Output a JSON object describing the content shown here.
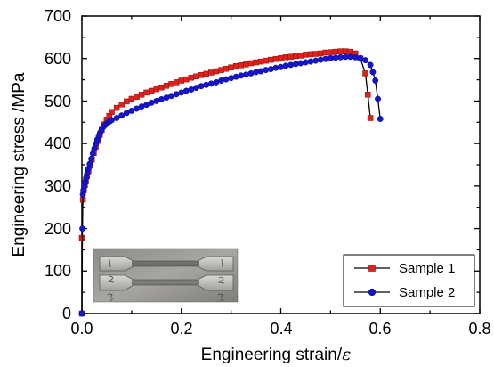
{
  "chart_data": {
    "type": "line",
    "xlabel": "Engineering strain/",
    "xlabel_symbol": "ε",
    "ylabel": "Engineering stress /MPa",
    "xlim": [
      0,
      0.8
    ],
    "ylim": [
      0,
      700
    ],
    "xticks": [
      "0.0",
      "0.2",
      "0.4",
      "0.6",
      "0.8"
    ],
    "yticks": [
      "0",
      "100",
      "200",
      "300",
      "400",
      "500",
      "600",
      "700"
    ],
    "grid": false,
    "legend_position": "bottom-right",
    "inset": "photo of two dog-bone tensile specimens",
    "series": [
      {
        "name": "Sample 1",
        "color": "#e0201a",
        "marker": "square",
        "x": [
          0.0,
          0.0,
          0.002,
          0.004,
          0.006,
          0.008,
          0.01,
          0.013,
          0.016,
          0.02,
          0.024,
          0.028,
          0.032,
          0.036,
          0.04,
          0.045,
          0.05,
          0.055,
          0.06,
          0.07,
          0.08,
          0.09,
          0.1,
          0.11,
          0.12,
          0.13,
          0.14,
          0.15,
          0.16,
          0.17,
          0.18,
          0.19,
          0.2,
          0.21,
          0.22,
          0.23,
          0.24,
          0.25,
          0.26,
          0.27,
          0.28,
          0.29,
          0.3,
          0.31,
          0.32,
          0.33,
          0.34,
          0.35,
          0.36,
          0.37,
          0.38,
          0.39,
          0.4,
          0.41,
          0.42,
          0.43,
          0.44,
          0.45,
          0.46,
          0.47,
          0.48,
          0.49,
          0.5,
          0.51,
          0.52,
          0.53,
          0.54,
          0.55,
          0.56,
          0.57,
          0.575,
          0.58
        ],
        "values": [
          0,
          178,
          268,
          290,
          302,
          313,
          323,
          335,
          348,
          362,
          378,
          393,
          406,
          420,
          432,
          445,
          456,
          465,
          474,
          484,
          492,
          499,
          505,
          510,
          515,
          520,
          524,
          528,
          532,
          536,
          540,
          544,
          548,
          551,
          555,
          558,
          561,
          564,
          567,
          570,
          573,
          576,
          579,
          582,
          584,
          586,
          589,
          591,
          593,
          595,
          597,
          599,
          601,
          603,
          604,
          606,
          607,
          609,
          610,
          611,
          612,
          614,
          615,
          616,
          617,
          617,
          616,
          612,
          600,
          565,
          515,
          460
        ]
      },
      {
        "name": "Sample 2",
        "color": "#1414d2",
        "marker": "circle",
        "x": [
          0.0,
          0.001,
          0.002,
          0.003,
          0.005,
          0.007,
          0.009,
          0.011,
          0.013,
          0.016,
          0.019,
          0.022,
          0.025,
          0.028,
          0.031,
          0.034,
          0.037,
          0.04,
          0.044,
          0.048,
          0.052,
          0.056,
          0.06,
          0.07,
          0.08,
          0.09,
          0.1,
          0.11,
          0.12,
          0.13,
          0.14,
          0.15,
          0.16,
          0.17,
          0.18,
          0.19,
          0.2,
          0.21,
          0.22,
          0.23,
          0.24,
          0.25,
          0.26,
          0.27,
          0.28,
          0.29,
          0.3,
          0.31,
          0.32,
          0.33,
          0.34,
          0.35,
          0.36,
          0.37,
          0.38,
          0.39,
          0.4,
          0.41,
          0.42,
          0.43,
          0.44,
          0.45,
          0.46,
          0.47,
          0.48,
          0.49,
          0.5,
          0.51,
          0.52,
          0.53,
          0.54,
          0.55,
          0.56,
          0.57,
          0.58,
          0.585,
          0.59,
          0.595,
          0.6
        ],
        "values": [
          0,
          200,
          280,
          290,
          300,
          310,
          320,
          330,
          340,
          352,
          364,
          376,
          388,
          399,
          409,
          418,
          426,
          433,
          440,
          445,
          449,
          452,
          455,
          460,
          466,
          472,
          477,
          482,
          487,
          491,
          496,
          500,
          504,
          508,
          512,
          516,
          520,
          524,
          527,
          531,
          535,
          538,
          541,
          544,
          548,
          551,
          554,
          557,
          560,
          562,
          565,
          568,
          570,
          573,
          575,
          578,
          580,
          583,
          585,
          587,
          589,
          591,
          593,
          595,
          597,
          599,
          601,
          602,
          603,
          604,
          604,
          603,
          601,
          596,
          585,
          568,
          548,
          505,
          458
        ]
      }
    ]
  }
}
